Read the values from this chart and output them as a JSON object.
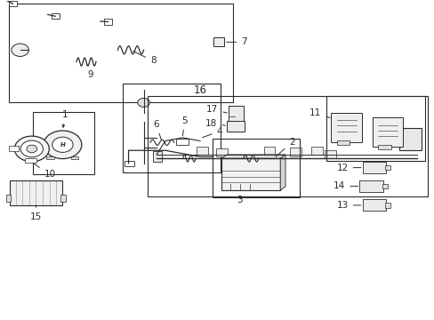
{
  "bg_color": "#ffffff",
  "line_color": "#2a2a2a"
}
